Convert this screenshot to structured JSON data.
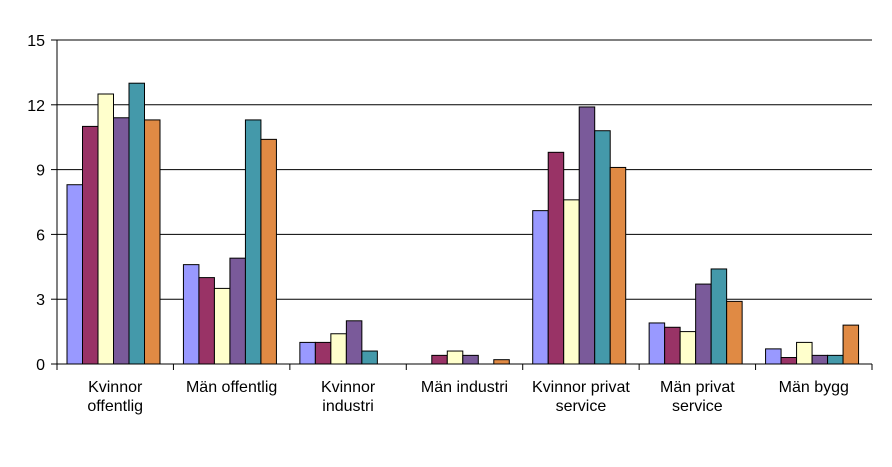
{
  "chart_data": {
    "type": "bar",
    "categories": [
      [
        "Kvinnor",
        "offentlig"
      ],
      [
        "Män offentlig"
      ],
      [
        "Kvinnor",
        "industri"
      ],
      [
        "Män industri"
      ],
      [
        "Kvinnor privat",
        "service"
      ],
      [
        "Män privat",
        "service"
      ],
      [
        "Män bygg"
      ]
    ],
    "series": [
      {
        "color": "#9999ff",
        "values": [
          8.3,
          4.6,
          1.0,
          0.0,
          7.1,
          1.9,
          0.7
        ]
      },
      {
        "color": "#993366",
        "values": [
          11.0,
          4.0,
          1.0,
          0.4,
          9.8,
          1.7,
          0.3
        ]
      },
      {
        "color": "#ffffcc",
        "values": [
          12.5,
          3.5,
          1.4,
          0.6,
          7.6,
          1.5,
          1.0
        ]
      },
      {
        "color": "#7a5a9a",
        "values": [
          11.4,
          4.9,
          2.0,
          0.4,
          11.9,
          3.7,
          0.4
        ]
      },
      {
        "color": "#4499aa",
        "values": [
          13.0,
          11.3,
          0.6,
          0.0,
          10.8,
          4.4,
          0.4
        ]
      },
      {
        "color": "#e08a44",
        "values": [
          11.3,
          10.4,
          0.0,
          0.2,
          9.1,
          2.9,
          1.8
        ]
      }
    ],
    "title": "",
    "xlabel": "",
    "ylabel": "",
    "ylim": [
      0,
      15
    ],
    "yticks": [
      "0",
      "3",
      "6",
      "9",
      "12",
      "15"
    ],
    "grid": true,
    "legend": "none"
  }
}
